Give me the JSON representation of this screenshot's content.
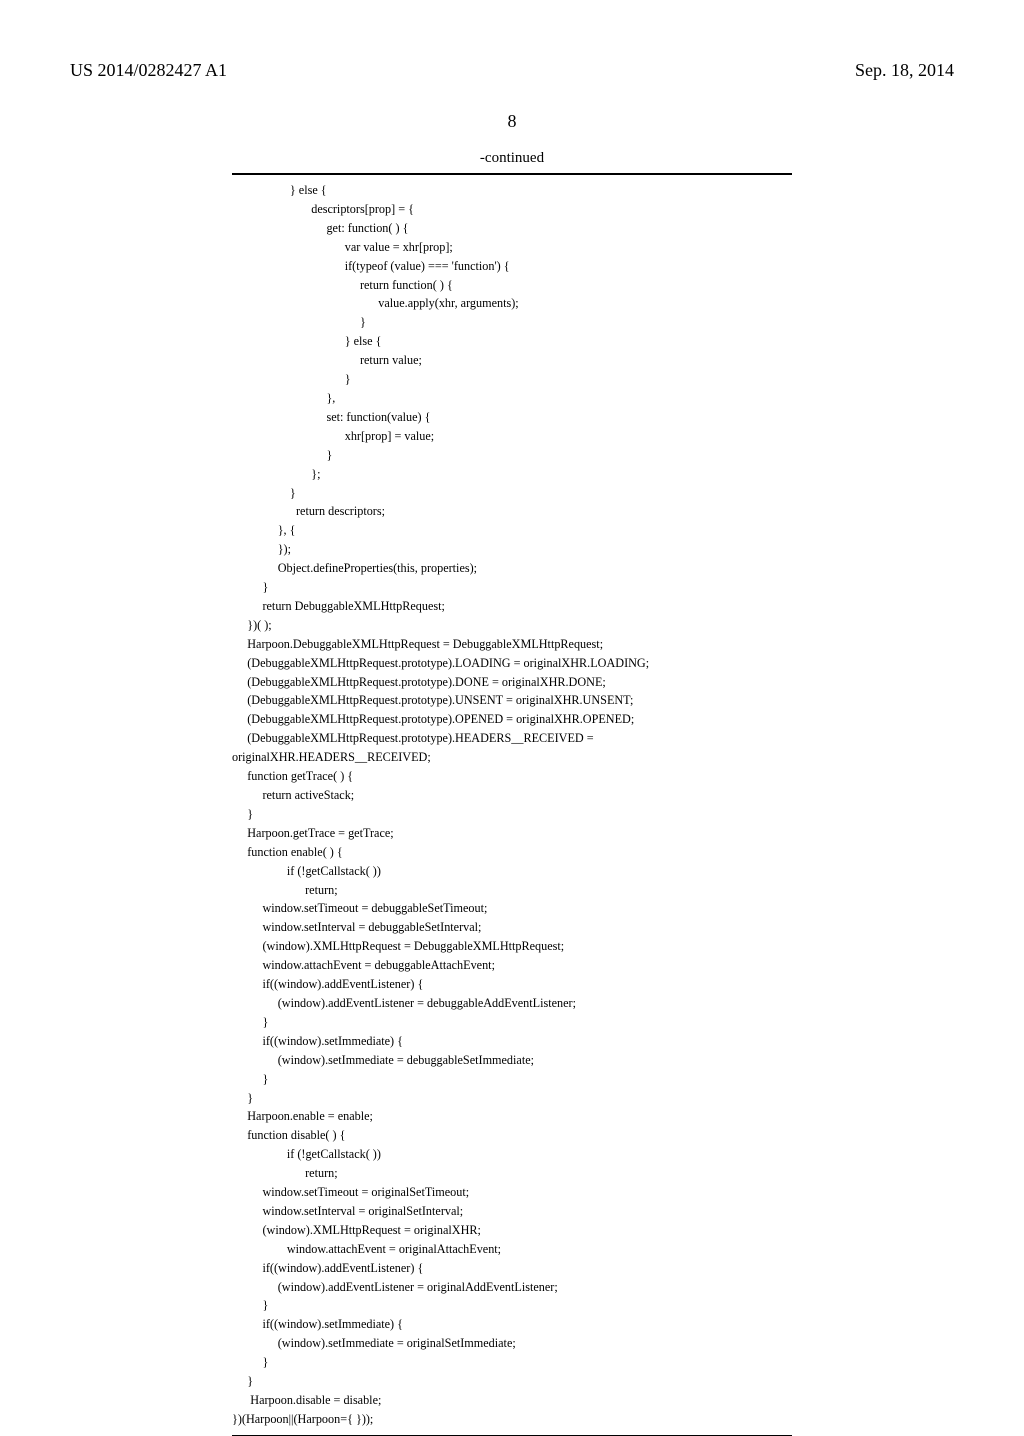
{
  "header": {
    "pub_number": "US 2014/0282427 A1",
    "pub_date": "Sep. 18, 2014"
  },
  "page_number": "8",
  "code_block": {
    "continued_label": "-continued",
    "code": "                   } else {\n                          descriptors[prop] = {\n                               get: function( ) {\n                                     var value = xhr[prop];\n                                     if(typeof (value) === 'function') {\n                                          return function( ) {\n                                                value.apply(xhr, arguments);\n                                          }\n                                     } else {\n                                          return value;\n                                     }\n                               },\n                               set: function(value) {\n                                     xhr[prop] = value;\n                               }\n                          };\n                   }\n                     return descriptors;\n               }, {\n               });\n               Object.defineProperties(this, properties);\n          }\n          return DebuggableXMLHttpRequest;\n     })( );\n     Harpoon.DebuggableXMLHttpRequest = DebuggableXMLHttpRequest;\n     (DebuggableXMLHttpRequest.prototype).LOADING = originalXHR.LOADING;\n     (DebuggableXMLHttpRequest.prototype).DONE = originalXHR.DONE;\n     (DebuggableXMLHttpRequest.prototype).UNSENT = originalXHR.UNSENT;\n     (DebuggableXMLHttpRequest.prototype).OPENED = originalXHR.OPENED;\n     (DebuggableXMLHttpRequest.prototype).HEADERS__RECEIVED =\noriginalXHR.HEADERS__RECEIVED;\n     function getTrace( ) {\n          return activeStack;\n     }\n     Harpoon.getTrace = getTrace;\n     function enable( ) {\n                  if (!getCallstack( ))\n                        return;\n          window.setTimeout = debuggableSetTimeout;\n          window.setInterval = debuggableSetInterval;\n          (window).XMLHttpRequest = DebuggableXMLHttpRequest;\n          window.attachEvent = debuggableAttachEvent;\n          if((window).addEventListener) {\n               (window).addEventListener = debuggableAddEventListener;\n          }\n          if((window).setImmediate) {\n               (window).setImmediate = debuggableSetImmediate;\n          }\n     }\n     Harpoon.enable = enable;\n     function disable( ) {\n                  if (!getCallstack( ))\n                        return;\n          window.setTimeout = originalSetTimeout;\n          window.setInterval = originalSetInterval;\n          (window).XMLHttpRequest = originalXHR;\n                  window.attachEvent = originalAttachEvent;\n          if((window).addEventListener) {\n               (window).addEventListener = originalAddEventListener;\n          }\n          if((window).setImmediate) {\n               (window).setImmediate = originalSetImmediate;\n          }\n     }\n      Harpoon.disable = disable;\n})(Harpoon||(Harpoon={ }));"
  }
}
